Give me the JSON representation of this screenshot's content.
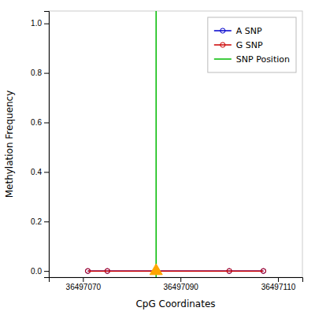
{
  "chart_data": {
    "type": "line",
    "xlabel": "CpG Coordinates",
    "ylabel": "Methylation Frequency",
    "x": [
      36497071,
      36497075,
      36497085,
      36497100,
      36497107
    ],
    "series": [
      {
        "name": "A SNP",
        "color": "#0000cc",
        "marker": "circle",
        "values": [
          0.0,
          0.0,
          0.0,
          0.0,
          0.0
        ]
      },
      {
        "name": "G SNP",
        "color": "#cc0000",
        "marker": "circle",
        "values": [
          0.0,
          0.0,
          0.0,
          0.0,
          0.0
        ]
      }
    ],
    "vlines": [
      {
        "name": "SNP Position",
        "color": "#00bb00",
        "x": 36497085
      }
    ],
    "markers": [
      {
        "x": 36497085,
        "y": 0.0,
        "color": "#ffa500",
        "marker": "triangle"
      }
    ],
    "xlim": [
      36497063,
      36497115
    ],
    "ylim": [
      -0.025,
      1.05
    ],
    "xticks": [
      36497070,
      36497090,
      36497110
    ],
    "yticks": [
      {
        "value": 0.0,
        "label": "0.0"
      },
      0.2,
      0.4,
      0.6,
      0.8,
      {
        "value": 1.0,
        "label": "1.0"
      }
    ],
    "legend": "upper right"
  }
}
